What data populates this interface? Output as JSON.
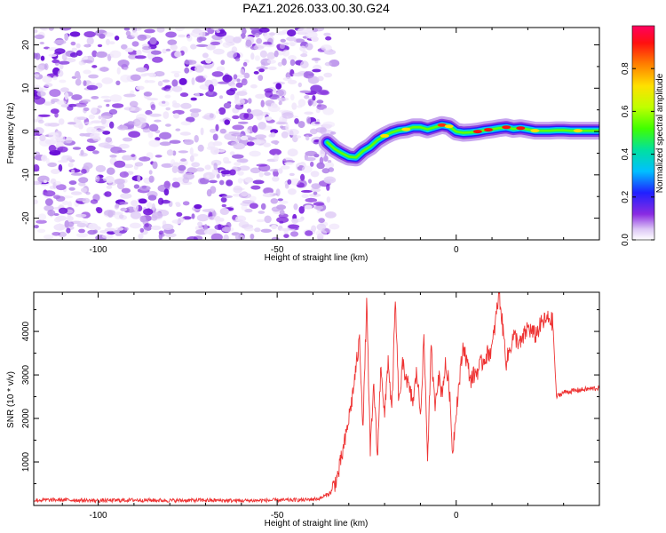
{
  "chart_data": [
    {
      "type": "heatmap",
      "title": "PAZ1.2026.033.00.30.G24",
      "xlabel": "Height of straight line (km)",
      "ylabel": "Frequency (Hz)",
      "xlim": [
        -118,
        40
      ],
      "ylim": [
        -25,
        24
      ],
      "xticks": [
        -100,
        -50,
        0
      ],
      "yticks": [
        -20,
        -10,
        0,
        10,
        20
      ],
      "colorbar": {
        "label": "Normalized spectral amplitude",
        "range": [
          0,
          1
        ],
        "ticks": [
          "0.0",
          "0.2",
          "0.4",
          "0.6",
          "0.8"
        ]
      },
      "noise_region_x": [
        -118,
        -36
      ],
      "signal_track": {
        "x": [
          -36,
          -34,
          -32,
          -30,
          -28,
          -26,
          -24,
          -22,
          -20,
          -18,
          -16,
          -14,
          -12,
          -10,
          -8,
          -6,
          -4,
          -2,
          0,
          2,
          4,
          6,
          8,
          10,
          12,
          14,
          16,
          18,
          20,
          22,
          24,
          26,
          28,
          30,
          32,
          34,
          36,
          38,
          40
        ],
        "y": [
          -2.5,
          -4.0,
          -5.0,
          -5.8,
          -6.0,
          -4.5,
          -3.5,
          -2.0,
          -1.0,
          -0.2,
          0.3,
          0.5,
          1.0,
          1.0,
          0.5,
          1.0,
          1.5,
          1.2,
          0.0,
          -0.3,
          -0.2,
          0.0,
          0.3,
          0.5,
          0.8,
          1.0,
          0.6,
          0.8,
          0.5,
          0.2,
          0.2,
          0.2,
          0.3,
          0.3,
          0.2,
          0.2,
          0.2,
          0.2,
          0.2
        ]
      }
    },
    {
      "type": "line",
      "xlabel": "Height of straight line (km)",
      "ylabel": "SNR (10 * v/v)",
      "xlim": [
        -118,
        40
      ],
      "ylim": [
        0,
        4900
      ],
      "xticks": [
        -100,
        -50,
        0
      ],
      "yticks": [
        1000,
        2000,
        3000,
        4000
      ],
      "color": "#ee3333",
      "series": [
        {
          "x": [
            -118,
            -110,
            -100,
            -90,
            -80,
            -70,
            -60,
            -50,
            -42,
            -38,
            -35,
            -33,
            -31,
            -29,
            -27,
            -26,
            -25,
            -24,
            -23,
            -22,
            -21,
            -20,
            -19,
            -18,
            -17,
            -16,
            -15,
            -14,
            -13,
            -12,
            -11,
            -10,
            -9,
            -8,
            -7,
            -6,
            -5,
            -4,
            -3,
            -2,
            -1,
            0,
            2,
            4,
            6,
            8,
            10,
            12,
            14,
            16,
            18,
            20,
            22,
            24,
            26,
            27,
            28,
            30,
            34,
            40
          ],
          "values": [
            120,
            130,
            110,
            125,
            115,
            120,
            110,
            120,
            130,
            160,
            300,
            700,
            1500,
            2500,
            3800,
            1800,
            4700,
            1200,
            2800,
            1100,
            3300,
            2000,
            3400,
            2100,
            4700,
            2300,
            3200,
            3000,
            2600,
            2400,
            3100,
            2100,
            3800,
            1100,
            3600,
            2300,
            3000,
            2600,
            3200,
            2800,
            1200,
            2200,
            3700,
            2900,
            3100,
            3400,
            3600,
            4900,
            3300,
            3900,
            3700,
            4100,
            3900,
            4200,
            4300,
            4200,
            2500,
            2600,
            2650,
            2700
          ]
        }
      ]
    }
  ]
}
